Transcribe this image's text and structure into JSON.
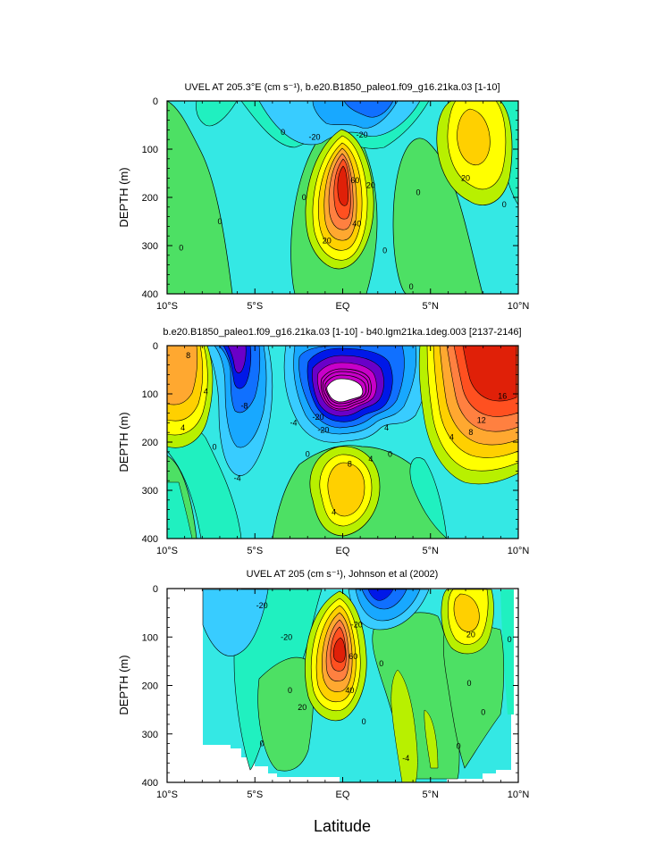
{
  "figure": {
    "xlabel": "Latitude"
  },
  "colors": {
    "levels": [
      "#6a00c8",
      "#0018e8",
      "#1070ff",
      "#18a8ff",
      "#38ccff",
      "#34e8e4",
      "#20f0c0",
      "#4de064",
      "#70f000",
      "#b8f000",
      "#ffff00",
      "#ffd000",
      "#ffa830",
      "#ff8040",
      "#ff5020",
      "#e02008"
    ]
  },
  "chart_data": [
    {
      "type": "contour",
      "title": "UVEL AT 205.3°E (cm s⁻¹), b.e20.B1850_paleo1.f09_g16.21ka.03 [1-10]",
      "ylabel": "DEPTH (m)",
      "xlim": [
        -10,
        10
      ],
      "ylim": [
        0,
        400
      ],
      "y_reversed": true,
      "xticks": [
        {
          "v": -10,
          "label": "10°S"
        },
        {
          "v": -5,
          "label": "5°S"
        },
        {
          "v": 0,
          "label": "EQ"
        },
        {
          "v": 5,
          "label": "5°N"
        },
        {
          "v": 10,
          "label": "10°N"
        }
      ],
      "yticks": [
        0,
        100,
        200,
        300,
        400
      ],
      "contour_labels": [
        {
          "x": -7.0,
          "y": 250,
          "text": "0"
        },
        {
          "x": -9.2,
          "y": 305,
          "text": "0"
        },
        {
          "x": -3.4,
          "y": 65,
          "text": "0"
        },
        {
          "x": -2.2,
          "y": 200,
          "text": "0"
        },
        {
          "x": -1.6,
          "y": 75,
          "text": "-20"
        },
        {
          "x": 1.1,
          "y": 70,
          "text": "-20"
        },
        {
          "x": 1.6,
          "y": 175,
          "text": "20"
        },
        {
          "x": 0.7,
          "y": 165,
          "text": "60"
        },
        {
          "x": 0.8,
          "y": 255,
          "text": "40"
        },
        {
          "x": -0.9,
          "y": 290,
          "text": "20"
        },
        {
          "x": 2.4,
          "y": 310,
          "text": "0"
        },
        {
          "x": 4.3,
          "y": 190,
          "text": "0"
        },
        {
          "x": 3.9,
          "y": 385,
          "text": "0"
        },
        {
          "x": 7.0,
          "y": 160,
          "text": "20"
        },
        {
          "x": 9.2,
          "y": 215,
          "text": "0"
        }
      ]
    },
    {
      "type": "contour",
      "title": "b.e20.B1850_paleo1.f09_g16.21ka.03 [1-10] - b40.lgm21ka.1deg.003 [2137-2146]",
      "ylabel": "DEPTH (m)",
      "xlim": [
        -10,
        10
      ],
      "ylim": [
        0,
        400
      ],
      "y_reversed": true,
      "xticks": [
        {
          "v": -10,
          "label": "10°S"
        },
        {
          "v": -5,
          "label": "5°S"
        },
        {
          "v": 0,
          "label": "EQ"
        },
        {
          "v": 5,
          "label": "5°N"
        },
        {
          "v": 10,
          "label": "10°N"
        }
      ],
      "yticks": [
        0,
        100,
        200,
        300,
        400
      ],
      "contour_labels": [
        {
          "x": -8.8,
          "y": 20,
          "text": "8"
        },
        {
          "x": -7.8,
          "y": 95,
          "text": "4"
        },
        {
          "x": -9.1,
          "y": 170,
          "text": "4"
        },
        {
          "x": -7.3,
          "y": 210,
          "text": "0"
        },
        {
          "x": -5.6,
          "y": 125,
          "text": "-8"
        },
        {
          "x": -6.0,
          "y": 275,
          "text": "-4"
        },
        {
          "x": -2.8,
          "y": 160,
          "text": "-4"
        },
        {
          "x": -1.4,
          "y": 148,
          "text": "-20"
        },
        {
          "x": -1.1,
          "y": 175,
          "text": "-20"
        },
        {
          "x": 2.5,
          "y": 170,
          "text": "4"
        },
        {
          "x": 1.6,
          "y": 235,
          "text": "4"
        },
        {
          "x": 0.4,
          "y": 245,
          "text": "8"
        },
        {
          "x": -2.0,
          "y": 225,
          "text": "0"
        },
        {
          "x": 2.7,
          "y": 225,
          "text": "0"
        },
        {
          "x": -0.5,
          "y": 345,
          "text": "4"
        },
        {
          "x": 6.2,
          "y": 190,
          "text": "4"
        },
        {
          "x": 7.3,
          "y": 180,
          "text": "8"
        },
        {
          "x": 7.9,
          "y": 155,
          "text": "12"
        },
        {
          "x": 9.1,
          "y": 105,
          "text": "16"
        }
      ]
    },
    {
      "type": "contour",
      "title": "UVEL AT 205 (cm s⁻¹), Johnson et al (2002)",
      "ylabel": "DEPTH (m)",
      "xlim": [
        -10,
        10
      ],
      "ylim": [
        0,
        400
      ],
      "y_reversed": true,
      "xticks": [
        {
          "v": -10,
          "label": "10°S"
        },
        {
          "v": -5,
          "label": "5°S"
        },
        {
          "v": 0,
          "label": "EQ"
        },
        {
          "v": 5,
          "label": "5°N"
        },
        {
          "v": 10,
          "label": "10°N"
        }
      ],
      "yticks": [
        0,
        100,
        200,
        300,
        400
      ],
      "data_coverage": "gaps below ~330 m south of 4°S and near the northern edge",
      "contour_labels": [
        {
          "x": -4.6,
          "y": 35,
          "text": "-20"
        },
        {
          "x": -3.2,
          "y": 100,
          "text": "-20"
        },
        {
          "x": -3.0,
          "y": 210,
          "text": "0"
        },
        {
          "x": -4.6,
          "y": 320,
          "text": "0"
        },
        {
          "x": 0.8,
          "y": 75,
          "text": "-20"
        },
        {
          "x": 2.2,
          "y": 155,
          "text": "0"
        },
        {
          "x": 0.6,
          "y": 140,
          "text": "60"
        },
        {
          "x": 0.4,
          "y": 210,
          "text": "40"
        },
        {
          "x": -2.3,
          "y": 245,
          "text": "20"
        },
        {
          "x": 1.2,
          "y": 275,
          "text": "0"
        },
        {
          "x": 3.6,
          "y": 350,
          "text": "-4"
        },
        {
          "x": 7.3,
          "y": 95,
          "text": "20"
        },
        {
          "x": 9.5,
          "y": 105,
          "text": "0"
        },
        {
          "x": 7.2,
          "y": 195,
          "text": "0"
        },
        {
          "x": 8.0,
          "y": 255,
          "text": "0"
        },
        {
          "x": 6.6,
          "y": 325,
          "text": "0"
        }
      ]
    }
  ]
}
